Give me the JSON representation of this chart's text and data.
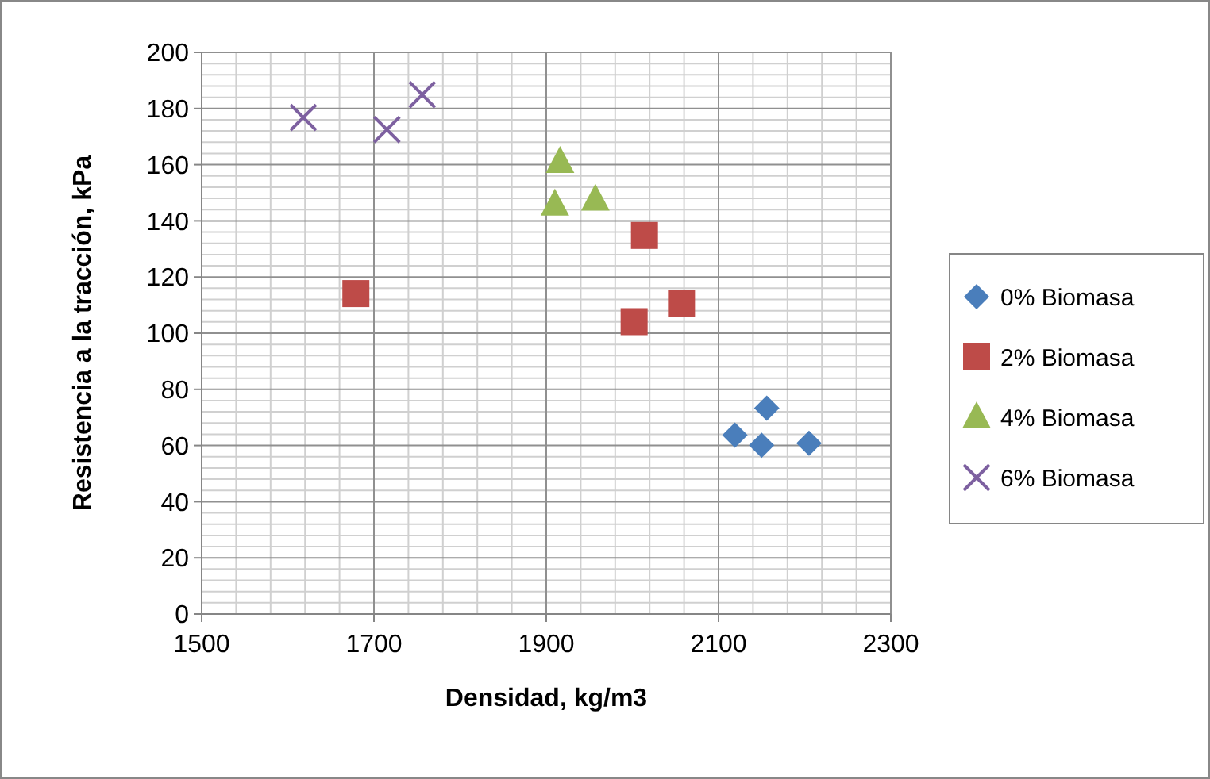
{
  "chart_data": {
    "type": "scatter",
    "xlabel": "Densidad, kg/m3",
    "ylabel": "Resistencia a la tracción, kPa",
    "xlim": [
      1500,
      2300
    ],
    "xticks": [
      1500,
      1700,
      1900,
      2100,
      2300
    ],
    "ylim": [
      0,
      200
    ],
    "yticks": [
      0,
      20,
      40,
      60,
      80,
      100,
      120,
      140,
      160,
      180,
      200
    ],
    "grid": true,
    "legend": "right",
    "series": [
      {
        "name": "0% Biomasa",
        "color": "#4a7ebb",
        "marker": "diamond",
        "x": [
          2119,
          2156,
          2150,
          2205
        ],
        "values": [
          63.7,
          73.3,
          60.1,
          60.8
        ]
      },
      {
        "name": "2% Biomasa",
        "color": "#be4b48",
        "marker": "square",
        "x": [
          1679,
          2014,
          2002,
          2057
        ],
        "values": [
          114.1,
          134.8,
          104.1,
          110.7
        ]
      },
      {
        "name": "4% Biomasa",
        "color": "#98b954",
        "marker": "triangle",
        "x": [
          1916,
          1910,
          1957
        ],
        "values": [
          161,
          145.8,
          147.6
        ]
      },
      {
        "name": "6% Biomasa",
        "color": "#7d60a0",
        "marker": "cross",
        "x": [
          1618,
          1715,
          1756
        ],
        "values": [
          176.8,
          172.5,
          184.9
        ]
      }
    ]
  }
}
